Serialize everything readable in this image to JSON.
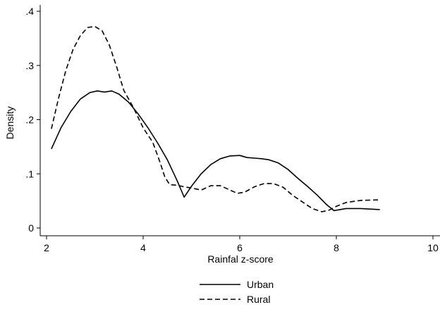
{
  "chart_data": {
    "type": "line",
    "title": "",
    "xlabel": "Rainfal z-score",
    "ylabel": "Density",
    "xlim": [
      2,
      10
    ],
    "ylim": [
      0,
      0.4
    ],
    "x_ticks": [
      2,
      4,
      6,
      8,
      10
    ],
    "x_tick_labels": [
      "2",
      "4",
      "6",
      "8",
      "10"
    ],
    "y_ticks": [
      0,
      0.1,
      0.2,
      0.3,
      0.4
    ],
    "y_tick_labels": [
      "0",
      ".1",
      ".2",
      ".3",
      ".4"
    ],
    "grid": false,
    "legend_position": "bottom",
    "series": [
      {
        "name": "Urban",
        "style": "solid",
        "color": "#000000",
        "x": [
          2.1,
          2.3,
          2.5,
          2.7,
          2.9,
          3.05,
          3.2,
          3.35,
          3.5,
          3.7,
          3.9,
          4.1,
          4.3,
          4.5,
          4.7,
          4.85,
          5.0,
          5.2,
          5.4,
          5.6,
          5.8,
          6.0,
          6.15,
          6.3,
          6.45,
          6.6,
          6.8,
          7.0,
          7.2,
          7.4,
          7.6,
          7.8,
          7.95,
          8.2,
          8.5,
          8.9
        ],
        "y": [
          0.146,
          0.185,
          0.215,
          0.238,
          0.25,
          0.253,
          0.251,
          0.253,
          0.247,
          0.232,
          0.21,
          0.185,
          0.157,
          0.126,
          0.088,
          0.057,
          0.077,
          0.1,
          0.117,
          0.128,
          0.133,
          0.134,
          0.13,
          0.129,
          0.128,
          0.126,
          0.12,
          0.108,
          0.092,
          0.077,
          0.061,
          0.043,
          0.032,
          0.036,
          0.036,
          0.034
        ]
      },
      {
        "name": "Rural",
        "style": "dashed",
        "color": "#000000",
        "x": [
          2.1,
          2.25,
          2.4,
          2.55,
          2.7,
          2.85,
          3.0,
          3.15,
          3.3,
          3.45,
          3.6,
          3.8,
          4.0,
          4.2,
          4.35,
          4.45,
          4.55,
          4.7,
          4.85,
          5.0,
          5.2,
          5.4,
          5.6,
          5.8,
          5.95,
          6.1,
          6.3,
          6.5,
          6.7,
          6.9,
          7.1,
          7.3,
          7.5,
          7.7,
          7.85,
          8.0,
          8.2,
          8.5,
          8.9
        ],
        "y": [
          0.183,
          0.24,
          0.291,
          0.33,
          0.355,
          0.37,
          0.372,
          0.364,
          0.338,
          0.298,
          0.254,
          0.222,
          0.185,
          0.158,
          0.121,
          0.094,
          0.08,
          0.079,
          0.076,
          0.074,
          0.07,
          0.078,
          0.078,
          0.07,
          0.064,
          0.066,
          0.076,
          0.082,
          0.082,
          0.075,
          0.06,
          0.048,
          0.036,
          0.03,
          0.033,
          0.04,
          0.047,
          0.051,
          0.052
        ]
      }
    ]
  }
}
